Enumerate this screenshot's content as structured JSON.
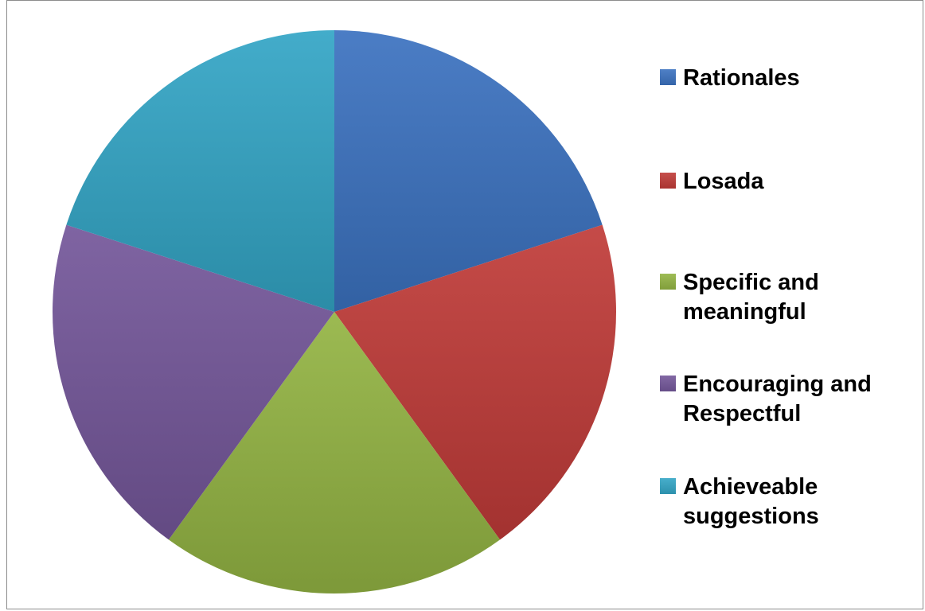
{
  "chart_data": {
    "type": "pie",
    "title": "",
    "slices": [
      {
        "label": "Rationales",
        "value": 20,
        "color": "#3b72c0"
      },
      {
        "label": "Losada",
        "value": 20,
        "color": "#c03b38"
      },
      {
        "label": "Specific and meaningful",
        "value": 20,
        "color": "#93b443"
      },
      {
        "label": "Encouraging and Respectful",
        "value": 20,
        "color": "#74579a"
      },
      {
        "label": "Achieveable suggestions",
        "value": 20,
        "color": "#33a5c5"
      }
    ],
    "legend_position": "right"
  }
}
